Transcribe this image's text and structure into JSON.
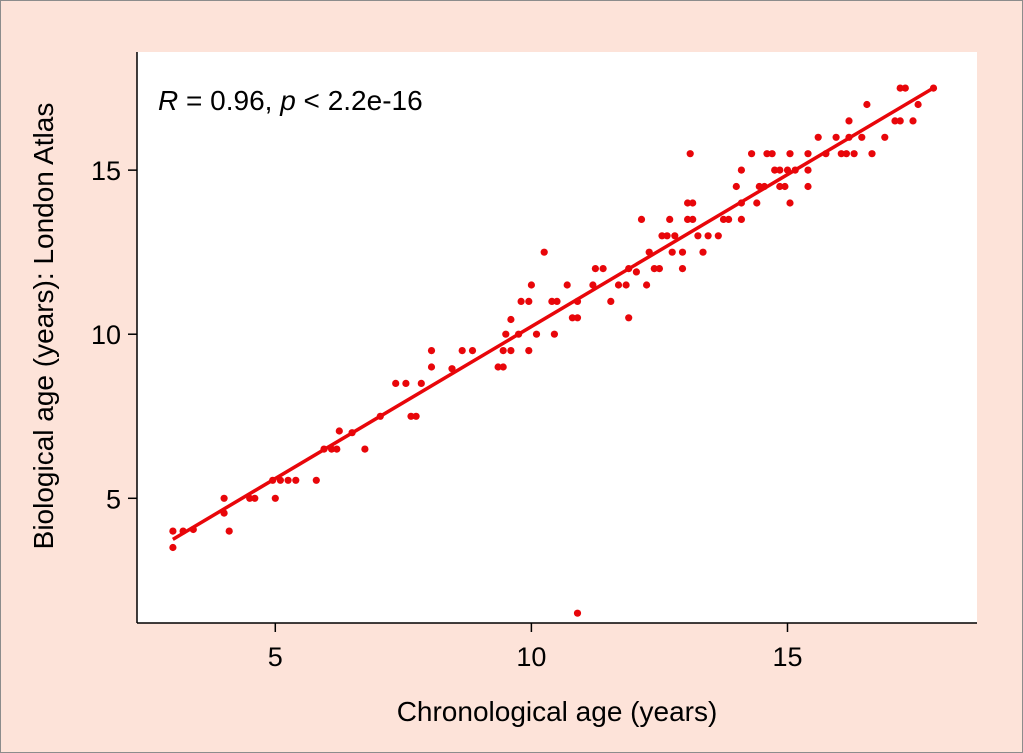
{
  "chart_data": {
    "type": "scatter",
    "title": "",
    "xlabel": "Chronological age (years)",
    "ylabel": "Biological age (years): London Atlas",
    "xlim": [
      2.3,
      18.7
    ],
    "ylim": [
      1.2,
      18.6
    ],
    "xticks": [
      5,
      10,
      15
    ],
    "yticks": [
      5,
      10,
      15
    ],
    "grid": false,
    "legend": "none",
    "annotation": {
      "r_symbol": "R",
      "r_text": " = 0.96, ",
      "p_symbol": "p",
      "p_text": " < 2.2e-16"
    },
    "series": [
      {
        "color": "#e8060a",
        "points": [
          [
            3.0,
            4.0
          ],
          [
            3.0,
            3.5
          ],
          [
            3.2,
            4.0
          ],
          [
            3.4,
            4.05
          ],
          [
            4.0,
            5.0
          ],
          [
            4.0,
            4.55
          ],
          [
            4.1,
            4.0
          ],
          [
            4.5,
            5.0
          ],
          [
            4.6,
            5.0
          ],
          [
            4.95,
            5.55
          ],
          [
            5.0,
            5.0
          ],
          [
            5.1,
            5.55
          ],
          [
            5.25,
            5.55
          ],
          [
            5.4,
            5.55
          ],
          [
            5.8,
            5.55
          ],
          [
            5.95,
            6.5
          ],
          [
            6.1,
            6.5
          ],
          [
            6.2,
            6.5
          ],
          [
            6.25,
            7.05
          ],
          [
            6.5,
            7.0
          ],
          [
            6.75,
            6.5
          ],
          [
            7.05,
            7.5
          ],
          [
            7.35,
            8.5
          ],
          [
            7.55,
            8.5
          ],
          [
            7.65,
            7.5
          ],
          [
            7.75,
            7.5
          ],
          [
            7.85,
            8.5
          ],
          [
            8.05,
            9.0
          ],
          [
            8.05,
            9.5
          ],
          [
            8.45,
            8.95
          ],
          [
            8.65,
            9.5
          ],
          [
            8.85,
            9.5
          ],
          [
            9.35,
            9.0
          ],
          [
            9.45,
            9.0
          ],
          [
            9.45,
            9.5
          ],
          [
            9.5,
            10.0
          ],
          [
            9.6,
            9.5
          ],
          [
            9.6,
            10.45
          ],
          [
            9.75,
            10.0
          ],
          [
            9.8,
            11.0
          ],
          [
            9.95,
            9.5
          ],
          [
            9.95,
            11.0
          ],
          [
            10.0,
            11.5
          ],
          [
            10.1,
            10.0
          ],
          [
            10.25,
            12.5
          ],
          [
            10.4,
            11.0
          ],
          [
            10.45,
            10.0
          ],
          [
            10.5,
            11.0
          ],
          [
            10.7,
            11.5
          ],
          [
            10.8,
            10.5
          ],
          [
            10.9,
            10.5
          ],
          [
            10.9,
            11.0
          ],
          [
            10.9,
            1.5
          ],
          [
            11.2,
            11.5
          ],
          [
            11.25,
            12.0
          ],
          [
            11.4,
            12.0
          ],
          [
            11.55,
            11.0
          ],
          [
            11.7,
            11.5
          ],
          [
            11.85,
            11.5
          ],
          [
            11.9,
            10.5
          ],
          [
            11.9,
            12.0
          ],
          [
            12.05,
            11.9
          ],
          [
            12.15,
            13.5
          ],
          [
            12.25,
            11.5
          ],
          [
            12.3,
            12.5
          ],
          [
            12.4,
            12.0
          ],
          [
            12.5,
            12.0
          ],
          [
            12.55,
            13.0
          ],
          [
            12.65,
            13.0
          ],
          [
            12.7,
            13.5
          ],
          [
            12.75,
            12.5
          ],
          [
            12.8,
            13.0
          ],
          [
            12.95,
            12.0
          ],
          [
            12.95,
            12.5
          ],
          [
            13.05,
            13.5
          ],
          [
            13.05,
            14.0
          ],
          [
            13.1,
            15.5
          ],
          [
            13.15,
            13.5
          ],
          [
            13.15,
            14.0
          ],
          [
            13.25,
            13.0
          ],
          [
            13.35,
            12.5
          ],
          [
            13.45,
            13.0
          ],
          [
            13.65,
            13.0
          ],
          [
            13.75,
            13.5
          ],
          [
            13.85,
            13.5
          ],
          [
            14.0,
            14.5
          ],
          [
            14.1,
            13.5
          ],
          [
            14.1,
            14.0
          ],
          [
            14.1,
            15.0
          ],
          [
            14.3,
            15.5
          ],
          [
            14.4,
            14.0
          ],
          [
            14.45,
            14.5
          ],
          [
            14.55,
            14.5
          ],
          [
            14.6,
            15.5
          ],
          [
            14.7,
            15.5
          ],
          [
            14.75,
            15.0
          ],
          [
            14.85,
            14.5
          ],
          [
            14.85,
            15.0
          ],
          [
            14.95,
            14.5
          ],
          [
            15.0,
            15.0
          ],
          [
            15.05,
            15.5
          ],
          [
            15.05,
            14.0
          ],
          [
            15.15,
            15.0
          ],
          [
            15.4,
            15.0
          ],
          [
            15.4,
            14.5
          ],
          [
            15.4,
            15.5
          ],
          [
            15.6,
            16.0
          ],
          [
            15.75,
            15.5
          ],
          [
            15.95,
            16.0
          ],
          [
            16.05,
            15.5
          ],
          [
            16.15,
            15.5
          ],
          [
            16.2,
            16.0
          ],
          [
            16.2,
            16.5
          ],
          [
            16.3,
            15.5
          ],
          [
            16.45,
            16.0
          ],
          [
            16.55,
            17.0
          ],
          [
            16.65,
            15.5
          ],
          [
            16.9,
            16.0
          ],
          [
            17.1,
            16.5
          ],
          [
            17.2,
            16.5
          ],
          [
            17.2,
            17.5
          ],
          [
            17.3,
            17.5
          ],
          [
            17.45,
            16.5
          ],
          [
            17.55,
            17.0
          ],
          [
            17.85,
            17.5
          ]
        ]
      }
    ],
    "fit_line": {
      "color": "#e8060a",
      "x": [
        3.0,
        17.9
      ],
      "y": [
        3.75,
        17.55
      ]
    }
  }
}
